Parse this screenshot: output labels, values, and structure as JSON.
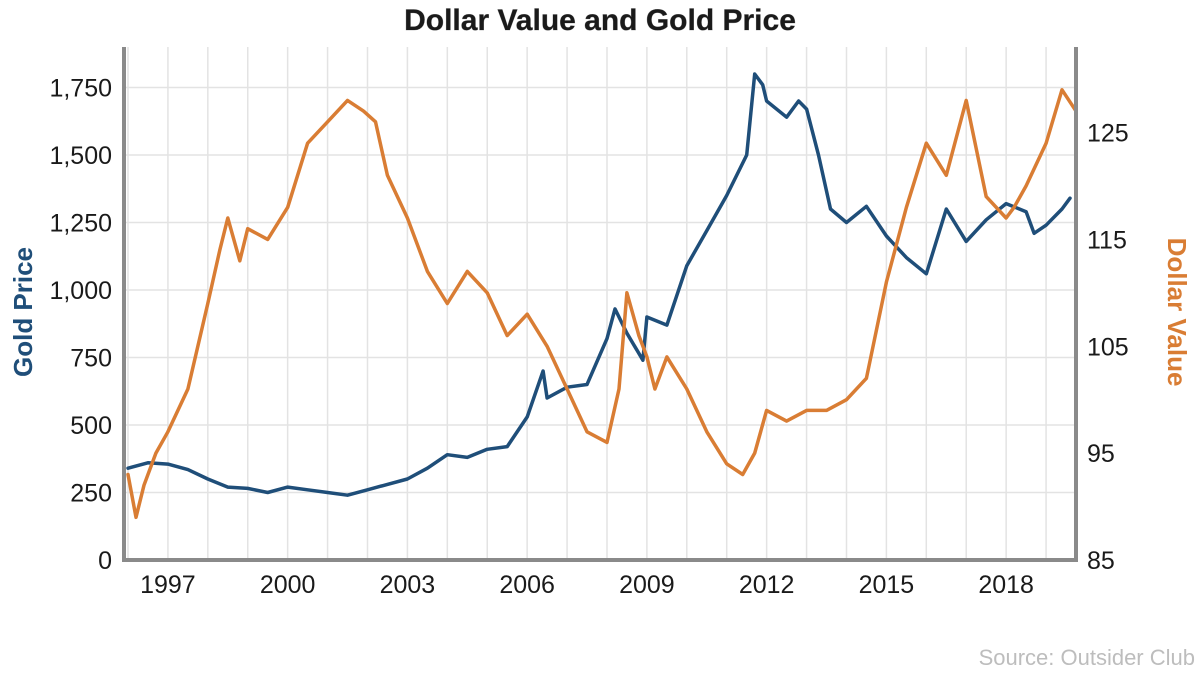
{
  "chart_data": {
    "type": "line",
    "title": "Dollar Value and Gold Price",
    "source": "Source: Outsider Club",
    "x_ticks": [
      "1997",
      "2000",
      "2003",
      "2006",
      "2009",
      "2012",
      "2015",
      "2018"
    ],
    "x_range": [
      1995.9,
      2019.75
    ],
    "grid": true,
    "y_left": {
      "label": "Gold Price",
      "range": [
        0,
        1900
      ],
      "ticks": [
        "0",
        "250",
        "500",
        "750",
        "1,000",
        "1,250",
        "1,500",
        "1,750"
      ],
      "tick_values": [
        0,
        250,
        500,
        750,
        1000,
        1250,
        1500,
        1750
      ]
    },
    "y_right": {
      "label": "Dollar Value",
      "range": [
        85,
        133
      ],
      "ticks": [
        "85",
        "95",
        "105",
        "115",
        "125"
      ],
      "tick_values": [
        85,
        95,
        105,
        115,
        125
      ]
    },
    "series": [
      {
        "name": "Gold Price",
        "axis": "left",
        "color": "#1f4e79",
        "x": [
          1996.0,
          1996.5,
          1997.0,
          1997.5,
          1998.0,
          1998.5,
          1999.0,
          1999.5,
          2000.0,
          2000.5,
          2001.0,
          2001.5,
          2002.0,
          2002.5,
          2003.0,
          2003.5,
          2004.0,
          2004.5,
          2005.0,
          2005.5,
          2006.0,
          2006.4,
          2006.5,
          2007.0,
          2007.5,
          2008.0,
          2008.2,
          2008.5,
          2008.9,
          2009.0,
          2009.5,
          2010.0,
          2010.5,
          2011.0,
          2011.5,
          2011.7,
          2011.9,
          2012.0,
          2012.5,
          2012.8,
          2013.0,
          2013.3,
          2013.6,
          2014.0,
          2014.5,
          2015.0,
          2015.5,
          2016.0,
          2016.5,
          2017.0,
          2017.5,
          2018.0,
          2018.5,
          2018.7,
          2019.0,
          2019.4,
          2019.6
        ],
        "values": [
          340,
          360,
          355,
          335,
          300,
          270,
          265,
          250,
          270,
          260,
          250,
          240,
          260,
          280,
          300,
          340,
          390,
          380,
          410,
          420,
          530,
          700,
          600,
          640,
          650,
          820,
          930,
          840,
          740,
          900,
          870,
          1090,
          1220,
          1350,
          1500,
          1800,
          1760,
          1700,
          1640,
          1700,
          1670,
          1500,
          1300,
          1250,
          1310,
          1200,
          1120,
          1060,
          1300,
          1180,
          1260,
          1320,
          1290,
          1210,
          1240,
          1300,
          1340
        ]
      },
      {
        "name": "Dollar Value",
        "axis": "right",
        "color": "#d97d34",
        "x": [
          1996.0,
          1996.2,
          1996.4,
          1996.7,
          1997.0,
          1997.5,
          1998.0,
          1998.3,
          1998.5,
          1998.8,
          1999.0,
          1999.5,
          2000.0,
          2000.5,
          2001.0,
          2001.5,
          2001.9,
          2002.2,
          2002.5,
          2003.0,
          2003.5,
          2004.0,
          2004.5,
          2005.0,
          2005.5,
          2006.0,
          2006.5,
          2007.0,
          2007.5,
          2008.0,
          2008.3,
          2008.5,
          2008.8,
          2009.0,
          2009.2,
          2009.5,
          2010.0,
          2010.5,
          2011.0,
          2011.4,
          2011.7,
          2012.0,
          2012.5,
          2013.0,
          2013.5,
          2014.0,
          2014.5,
          2015.0,
          2015.5,
          2016.0,
          2016.5,
          2017.0,
          2017.5,
          2018.0,
          2018.2,
          2018.5,
          2019.0,
          2019.4,
          2019.75
        ],
        "values": [
          93,
          89,
          92,
          95,
          97,
          101,
          109,
          114,
          117,
          113,
          116,
          115,
          118,
          124,
          126,
          128,
          127,
          126,
          121,
          117,
          112,
          109,
          112,
          110,
          106,
          108,
          105,
          101,
          97,
          96,
          101,
          110,
          106,
          104,
          101,
          104,
          101,
          97,
          94,
          93,
          95,
          99,
          98,
          99,
          99,
          100,
          102,
          111,
          118,
          124,
          121,
          128,
          119,
          117,
          118,
          120,
          124,
          129,
          127
        ]
      }
    ]
  }
}
